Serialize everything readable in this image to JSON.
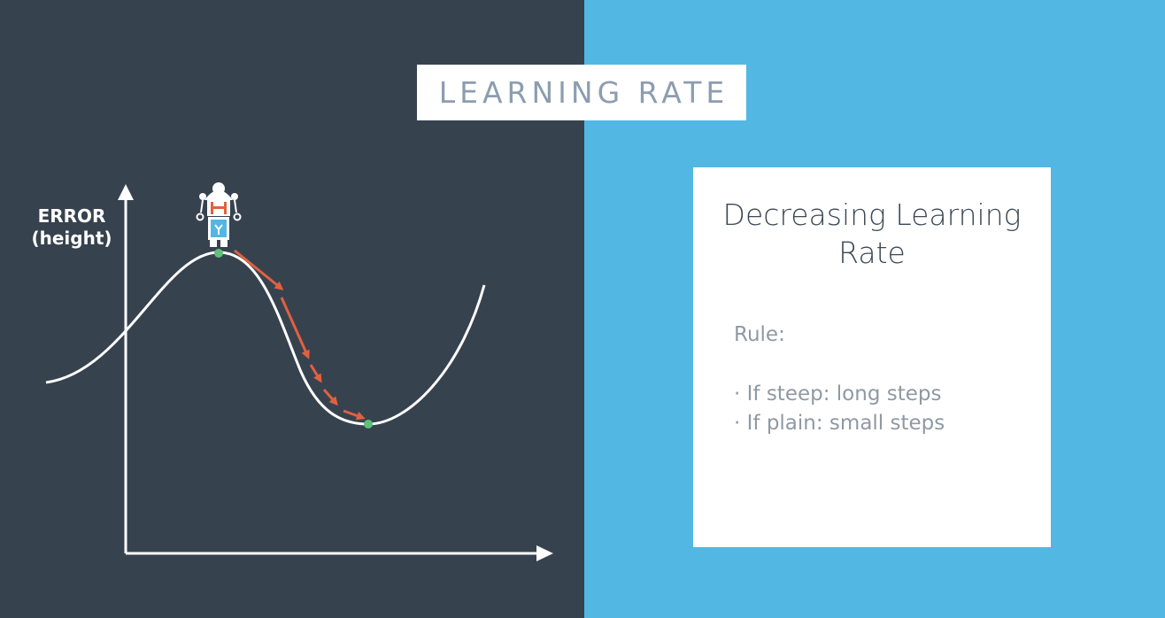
{
  "title": "LEARNING RATE",
  "diagram": {
    "y_axis_label_line1": "ERROR",
    "y_axis_label_line2": "(height)",
    "curve_color": "#ffffff",
    "step_arrow_color": "#e1613f",
    "point_color": "#5fc07a",
    "character_icon": "robot-icon"
  },
  "note": {
    "title_line1": "Decreasing Learning",
    "title_line2": "Rate",
    "rule_label": "Rule:",
    "items": [
      "· If steep: long steps",
      "· If plain: small steps"
    ]
  },
  "colors": {
    "left_background": "#37424f",
    "right_background": "#52b7e3"
  }
}
